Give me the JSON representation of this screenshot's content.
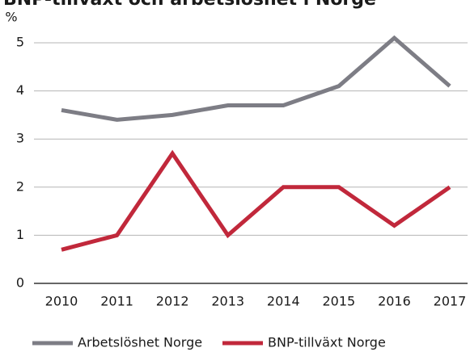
{
  "chart_data": {
    "type": "line",
    "title": "BNP-tillväxt och arbetslöshet i Norge",
    "y_label": "%",
    "categories": [
      "2010",
      "2011",
      "2012",
      "2013",
      "2014",
      "2015",
      "2016",
      "2017"
    ],
    "series": [
      {
        "name": "Arbetslöshet Norge",
        "color": "#7d7d85",
        "values": [
          3.6,
          3.4,
          3.5,
          3.7,
          3.7,
          4.1,
          5.1,
          4.1
        ]
      },
      {
        "name": "BNP-tillväxt Norge",
        "color": "#c1283b",
        "values": [
          0.7,
          1.0,
          2.7,
          1.0,
          2.0,
          2.0,
          1.2,
          2.0
        ]
      }
    ],
    "ylim": [
      0,
      5
    ],
    "yticks": [
      0,
      1,
      2,
      3,
      4,
      5
    ],
    "grid": true,
    "legend": "bottom"
  }
}
